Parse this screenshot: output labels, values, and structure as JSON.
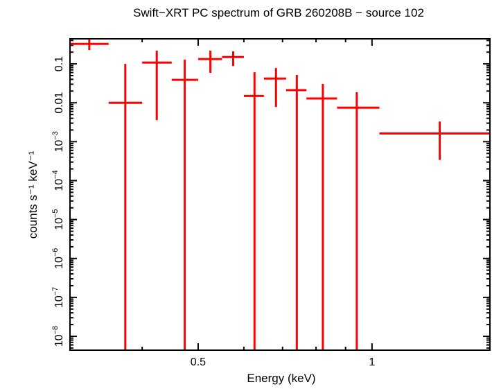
{
  "chart_data": {
    "type": "scatter",
    "title": "Swift−XRT PC spectrum of GRB 260208B − source 102",
    "xlabel": "Energy (keV)",
    "ylabel": "counts s⁻¹ keV⁻¹",
    "x_scale": "log",
    "y_scale": "log",
    "xlim": [
      0.3,
      1.6
    ],
    "ylim": [
      4.4e-09,
      0.44
    ],
    "x_ticks": [
      {
        "value": 0.5,
        "label": "0.5"
      },
      {
        "value": 1,
        "label": "1"
      }
    ],
    "y_ticks": [
      {
        "value": 0.1,
        "label": "0.1"
      },
      {
        "value": 0.01,
        "label": "0.01"
      },
      {
        "value": 0.001,
        "base": "10",
        "exp": "−3"
      },
      {
        "value": 0.0001,
        "base": "10",
        "exp": "−4"
      },
      {
        "value": 1e-05,
        "base": "10",
        "exp": "−5"
      },
      {
        "value": 1e-06,
        "base": "10",
        "exp": "−6"
      },
      {
        "value": 1e-07,
        "base": "10",
        "exp": "−7"
      },
      {
        "value": 1e-08,
        "base": "10",
        "exp": "−8"
      }
    ],
    "grid": false,
    "color": "#ff0000",
    "points": [
      {
        "x": 0.324,
        "x_low": 0.3,
        "x_high": 0.35,
        "y": 0.327,
        "y_low": 0.226,
        "y_high": 0.44
      },
      {
        "x": 0.374,
        "x_low": 0.35,
        "x_high": 0.4,
        "y": 0.01,
        "y_low": 0,
        "y_high": 0.1
      },
      {
        "x": 0.424,
        "x_low": 0.4,
        "x_high": 0.45,
        "y": 0.108,
        "y_low": 0.0036,
        "y_high": 0.218
      },
      {
        "x": 0.474,
        "x_low": 0.45,
        "x_high": 0.5,
        "y": 0.039,
        "y_low": 0,
        "y_high": 0.128
      },
      {
        "x": 0.525,
        "x_low": 0.5,
        "x_high": 0.55,
        "y": 0.133,
        "y_low": 0.059,
        "y_high": 0.218
      },
      {
        "x": 0.575,
        "x_low": 0.55,
        "x_high": 0.6,
        "y": 0.15,
        "y_low": 0.088,
        "y_high": 0.21
      },
      {
        "x": 0.626,
        "x_low": 0.6,
        "x_high": 0.65,
        "y": 0.015,
        "y_low": 0,
        "y_high": 0.061
      },
      {
        "x": 0.682,
        "x_low": 0.65,
        "x_high": 0.71,
        "y": 0.042,
        "y_low": 0.0078,
        "y_high": 0.078
      },
      {
        "x": 0.741,
        "x_low": 0.71,
        "x_high": 0.77,
        "y": 0.0211,
        "y_low": 0,
        "y_high": 0.052
      },
      {
        "x": 0.822,
        "x_low": 0.77,
        "x_high": 0.87,
        "y": 0.0129,
        "y_low": 0,
        "y_high": 0.0305
      },
      {
        "x": 0.941,
        "x_low": 0.87,
        "x_high": 1.03,
        "y": 0.0075,
        "y_low": 0,
        "y_high": 0.0187
      },
      {
        "x": 1.31,
        "x_low": 1.03,
        "x_high": 1.6,
        "y": 0.00163,
        "y_low": 0.00034,
        "y_high": 0.0033
      }
    ]
  }
}
